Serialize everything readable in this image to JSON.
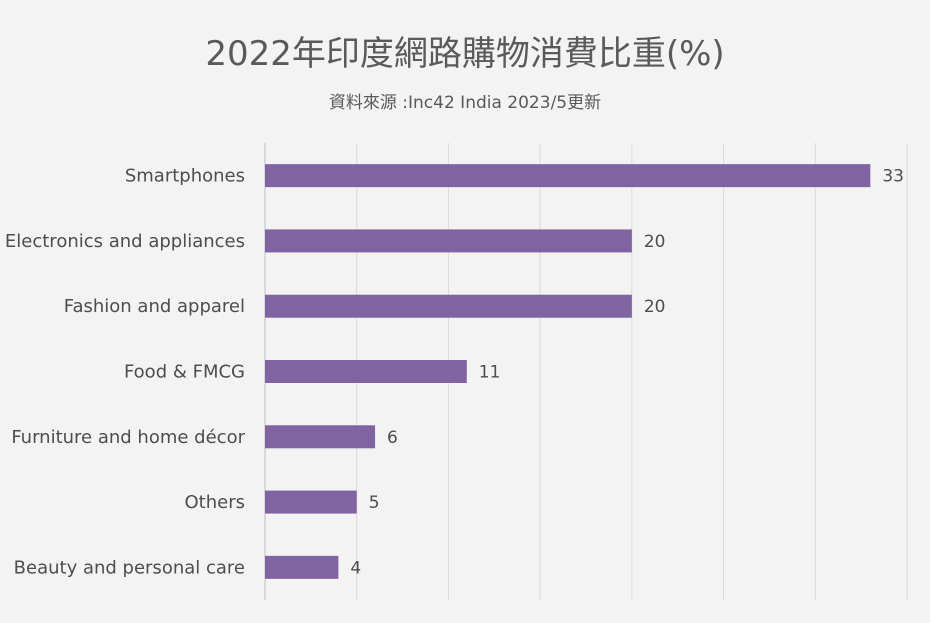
{
  "chart_data": {
    "type": "bar",
    "orientation": "horizontal",
    "title": "2022年印度網路購物消費比重(%)",
    "subtitle": "資料來源 :Inc42 India 2023/5更新",
    "categories": [
      "Smartphones",
      "Electronics and appliances",
      "Fashion and apparel",
      "Food & FMCG",
      "Furniture and home décor",
      "Others",
      "Beauty and personal care"
    ],
    "values": [
      33,
      20,
      20,
      11,
      6,
      5,
      4
    ],
    "xlim": [
      0,
      35
    ],
    "grid": true,
    "bar_color": "#8064a2",
    "xlabel": "",
    "ylabel": ""
  }
}
